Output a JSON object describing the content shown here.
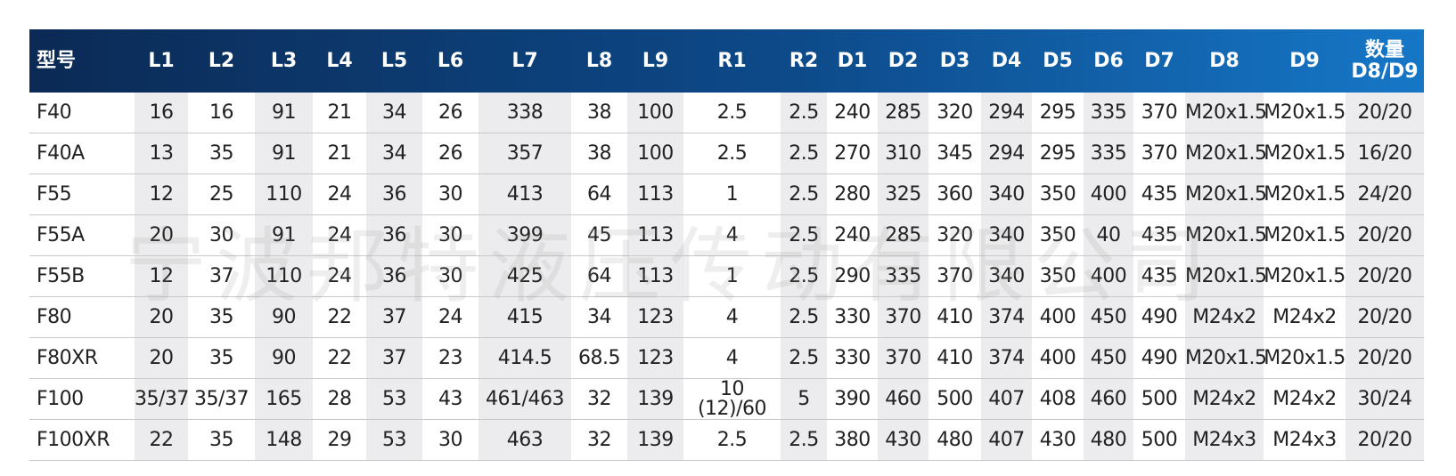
{
  "watermark": "宁波邦特液压传动有限公司",
  "table": {
    "columns": [
      "型号",
      "L1",
      "L2",
      "L3",
      "L4",
      "L5",
      "L6",
      "L7",
      "L8",
      "L9",
      "R1",
      "R2",
      "D1",
      "D2",
      "D3",
      "D4",
      "D5",
      "D6",
      "D7",
      "D8",
      "D9",
      "数量\nD8/D9"
    ],
    "rows": [
      [
        "F40",
        "16",
        "16",
        "91",
        "21",
        "34",
        "26",
        "338",
        "38",
        "100",
        "2.5",
        "2.5",
        "240",
        "285",
        "320",
        "294",
        "295",
        "335",
        "370",
        "M20x1.5",
        "M20x1.5",
        "20/20"
      ],
      [
        "F40A",
        "13",
        "35",
        "91",
        "21",
        "34",
        "26",
        "357",
        "38",
        "100",
        "2.5",
        "2.5",
        "270",
        "310",
        "345",
        "294",
        "295",
        "335",
        "370",
        "M20x1.5",
        "M20x1.5",
        "16/20"
      ],
      [
        "F55",
        "12",
        "25",
        "110",
        "24",
        "36",
        "30",
        "413",
        "64",
        "113",
        "1",
        "2.5",
        "280",
        "325",
        "360",
        "340",
        "350",
        "400",
        "435",
        "M20x1.5",
        "M20x1.5",
        "24/20"
      ],
      [
        "F55A",
        "20",
        "30",
        "91",
        "24",
        "36",
        "30",
        "399",
        "45",
        "113",
        "4",
        "2.5",
        "240",
        "285",
        "320",
        "340",
        "350",
        "40",
        "435",
        "M20x1.5",
        "M20x1.5",
        "20/20"
      ],
      [
        "F55B",
        "12",
        "37",
        "110",
        "24",
        "36",
        "30",
        "425",
        "64",
        "113",
        "1",
        "2.5",
        "290",
        "335",
        "370",
        "340",
        "350",
        "400",
        "435",
        "M20x1.5",
        "M20x1.5",
        "20/20"
      ],
      [
        "F80",
        "20",
        "35",
        "90",
        "22",
        "37",
        "24",
        "415",
        "34",
        "123",
        "4",
        "2.5",
        "330",
        "370",
        "410",
        "374",
        "400",
        "450",
        "490",
        "M24x2",
        "M24x2",
        "20/20"
      ],
      [
        "F80XR",
        "20",
        "35",
        "90",
        "22",
        "37",
        "23",
        "414.5",
        "68.5",
        "123",
        "4",
        "2.5",
        "330",
        "370",
        "410",
        "374",
        "400",
        "450",
        "490",
        "M20x1.5",
        "M20x1.5",
        "20/20"
      ],
      [
        "F100",
        "35/37",
        "35/37",
        "165",
        "28",
        "53",
        "43",
        "461/463",
        "32",
        "139",
        "10\n(12)/60",
        "5",
        "390",
        "460",
        "500",
        "407",
        "408",
        "460",
        "500",
        "M24x2",
        "M24x2",
        "30/24"
      ],
      [
        "F100XR",
        "22",
        "35",
        "148",
        "29",
        "53",
        "30",
        "463",
        "32",
        "139",
        "2.5",
        "2.5",
        "380",
        "430",
        "480",
        "407",
        "430",
        "480",
        "500",
        "M24x3",
        "M24x3",
        "20/20"
      ]
    ]
  }
}
